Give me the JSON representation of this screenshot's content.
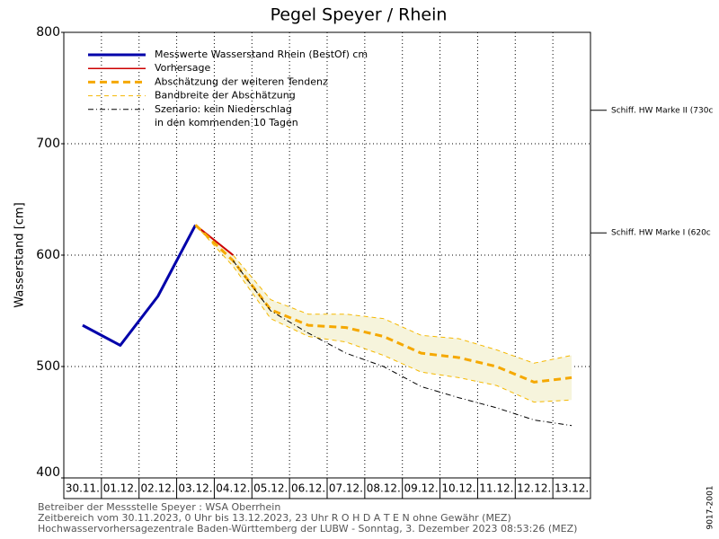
{
  "chart_data": {
    "type": "line",
    "title": "Pegel Speyer / Rhein",
    "y_label": "Wasserstand [cm]",
    "categories": [
      "30.11.",
      "01.12.",
      "02.12.",
      "03.12.",
      "04.12.",
      "05.12.",
      "06.12.",
      "07.12.",
      "08.12.",
      "09.12.",
      "10.12.",
      "11.12.",
      "12.12.",
      "13.12."
    ],
    "ylim": [
      400,
      800
    ],
    "yticks": [
      400,
      500,
      600,
      700,
      800
    ],
    "grid": true,
    "series": [
      {
        "name": "Messwerte Wasserstand Rhein (BestOf)   cm",
        "color": "#0000aa",
        "style": "solid",
        "values": [
          537,
          519,
          563,
          627,
          null,
          null,
          null,
          null,
          null,
          null,
          null,
          null,
          null,
          null
        ]
      },
      {
        "name": "Vorhersage",
        "color": "#cc0000",
        "style": "solid",
        "values": [
          null,
          null,
          null,
          627,
          600,
          null,
          null,
          null,
          null,
          null,
          null,
          null,
          null,
          null
        ]
      },
      {
        "name": "Abschätzung der weiteren Tendenz",
        "color": "#f5a800",
        "style": "dashed",
        "values": [
          null,
          null,
          null,
          627,
          595,
          551,
          537,
          535,
          527,
          512,
          508,
          500,
          486,
          490
        ]
      },
      {
        "name": "Bandbreite der Abschätzung",
        "color": "#f5b800",
        "style": "band",
        "values": [
          null,
          null,
          null,
          627,
          600,
          560,
          547,
          547,
          543,
          528,
          525,
          515,
          503,
          510
        ],
        "lower": [
          null,
          null,
          null,
          627,
          590,
          543,
          527,
          522,
          510,
          495,
          490,
          483,
          468,
          470
        ]
      },
      {
        "name": "Szenario: kein Niederschlag",
        "color": "#000000",
        "style": "dashdot",
        "values": [
          null,
          null,
          null,
          null,
          595,
          550,
          530,
          512,
          500,
          482,
          472,
          463,
          452,
          447
        ]
      }
    ],
    "legend_note": "in den kommenden 10 Tagen",
    "reference_lines": [
      {
        "label": "Schiff. HW Marke II (730c",
        "value": 730
      },
      {
        "label": "Schiff. HW Marke I (620c",
        "value": 620
      }
    ],
    "footer": [
      "Betreiber der Messstelle Speyer : WSA Oberrhein",
      "Zeitbereich vom 30.11.2023, 0 Uhr bis 13.12.2023, 23 Uhr    R O H D A T E N ohne Gewähr (MEZ)",
      "Hochwasservorhersagezentrale Baden-Württemberg der LUBW - Sonntag, 3. Dezember 2023 08:53:26 (MEZ)"
    ],
    "code": "9017-2001"
  }
}
